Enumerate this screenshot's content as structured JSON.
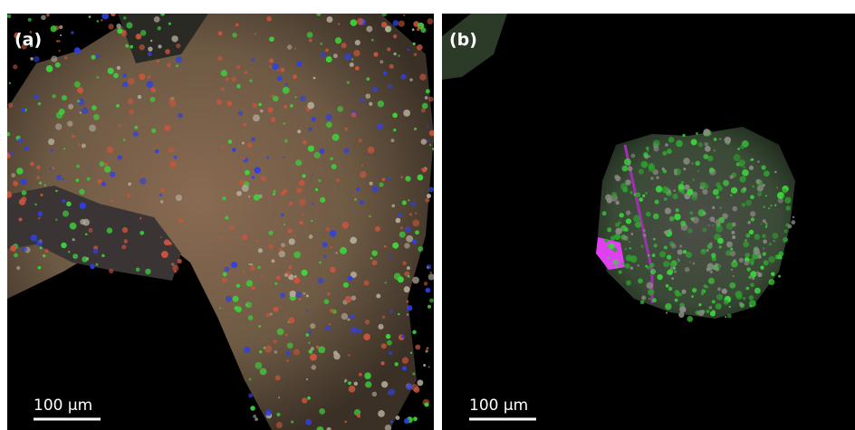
{
  "panels": [
    {
      "label": "(a)",
      "scale_bar": "100 µm"
    },
    {
      "label": "(b)",
      "scale_bar": "100 µm"
    }
  ]
}
